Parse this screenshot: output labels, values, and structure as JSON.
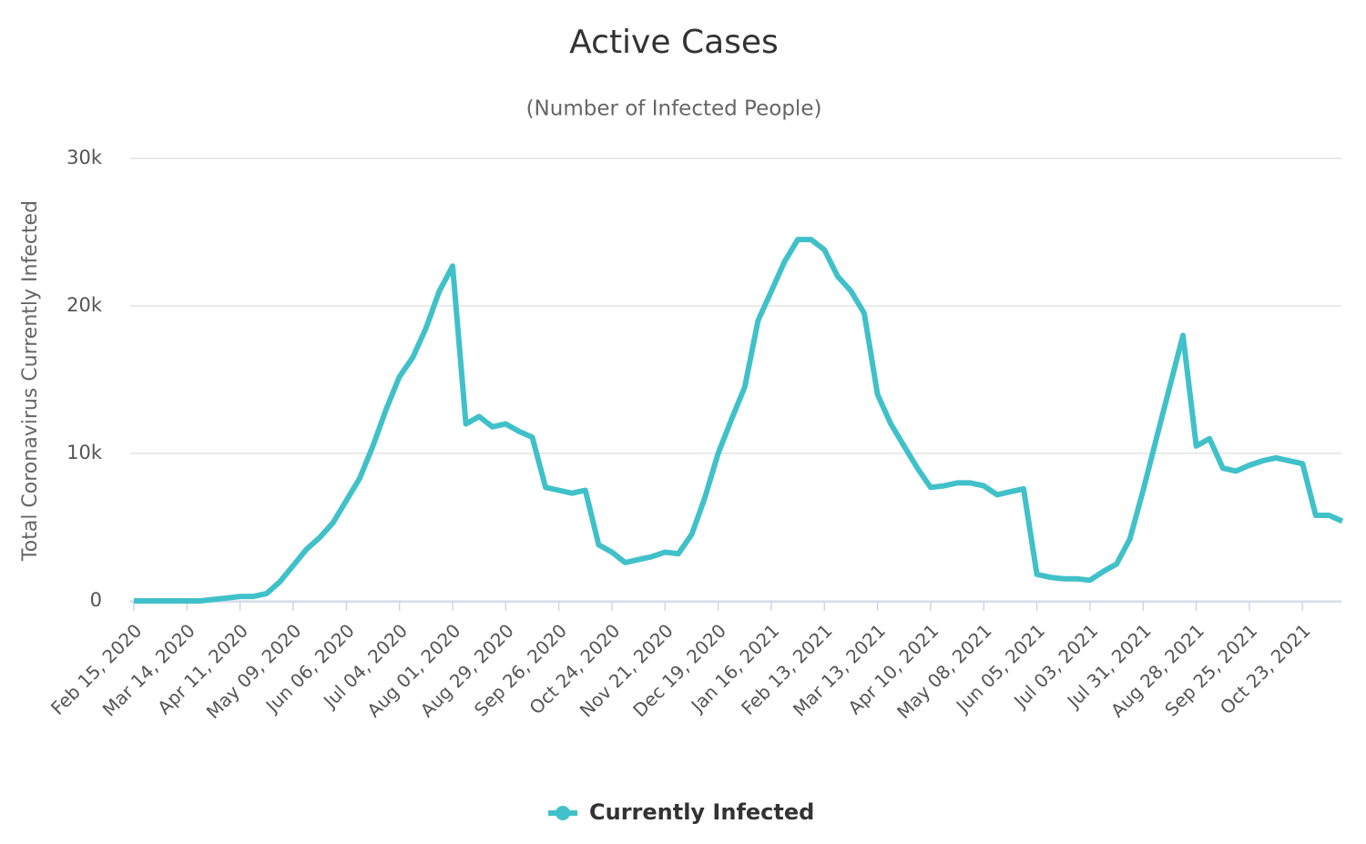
{
  "chart_data": {
    "type": "line",
    "title": "Active Cases",
    "subtitle": "(Number of Infected People)",
    "y_label": "Total Coronavirus Currently Infected",
    "categories": [
      "Feb 15, 2020",
      null,
      null,
      null,
      "Mar 14, 2020",
      null,
      null,
      null,
      "Apr 11, 2020",
      null,
      null,
      null,
      "May 09, 2020",
      null,
      null,
      null,
      "Jun 06, 2020",
      null,
      null,
      null,
      "Jul 04, 2020",
      null,
      null,
      null,
      "Aug 01, 2020",
      null,
      null,
      null,
      "Aug 29, 2020",
      null,
      null,
      null,
      "Sep 26, 2020",
      null,
      null,
      null,
      "Oct 24, 2020",
      null,
      null,
      null,
      "Nov 21, 2020",
      null,
      null,
      null,
      "Dec 19, 2020",
      null,
      null,
      null,
      "Jan 16, 2021",
      null,
      null,
      null,
      "Feb 13, 2021",
      null,
      null,
      null,
      "Mar 13, 2021",
      null,
      null,
      null,
      "Apr 10, 2021",
      null,
      null,
      null,
      "May 08, 2021",
      null,
      null,
      null,
      "Jun 05, 2021",
      null,
      null,
      null,
      "Jul 03, 2021",
      null,
      null,
      null,
      "Jul 31, 2021",
      null,
      null,
      null,
      "Aug 28, 2021",
      null,
      null,
      null,
      "Sep 25, 2021",
      null,
      null,
      null,
      "Oct 23, 2021",
      null,
      null,
      null
    ],
    "series": [
      {
        "name": "Currently Infected",
        "color": "#40c1c9",
        "values": [
          0,
          0,
          0,
          0,
          0,
          0,
          100,
          200,
          300,
          300,
          500,
          1300,
          2400,
          3500,
          4300,
          5300,
          6800,
          8300,
          10500,
          13000,
          15200,
          16500,
          18500,
          21000,
          22700,
          12000,
          12500,
          11800,
          12000,
          11500,
          11100,
          7700,
          7500,
          7300,
          7500,
          3800,
          3300,
          2600,
          2800,
          3000,
          3300,
          3200,
          4500,
          7000,
          10000,
          12300,
          14500,
          19000,
          21000,
          23000,
          24500,
          24500,
          23800,
          22000,
          21000,
          19500,
          14000,
          12000,
          10500,
          9000,
          7700,
          7800,
          8000,
          8000,
          7800,
          7200,
          7400,
          7600,
          1800,
          1600,
          1500,
          1500,
          1400,
          2000,
          2500,
          4200,
          7500,
          11000,
          14500,
          18000,
          10500,
          11000,
          9000,
          8800,
          9200,
          9500,
          9700,
          9500,
          9300,
          5800,
          5800,
          5400
        ]
      }
    ],
    "ylim": [
      0,
      30000
    ],
    "yticks": [
      0,
      {
        "value": 10000,
        "label": "10k"
      },
      {
        "value": 20000,
        "label": "20k"
      },
      {
        "value": 30000,
        "label": "30k"
      }
    ],
    "grid": true,
    "legend": "bottom"
  }
}
